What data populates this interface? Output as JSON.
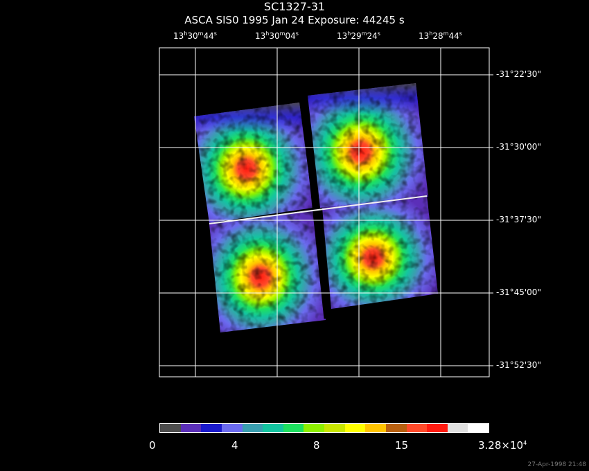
{
  "title": "SC1327-31",
  "subtitle": "ASCA SIS0   1995 Jan 24    Exposure: 44245 s",
  "ra_labels": [
    {
      "h": "13",
      "hm": "h",
      "m": "30",
      "ms": "m",
      "s": "44",
      "ss": "s"
    },
    {
      "h": "13",
      "hm": "h",
      "m": "30",
      "ms": "m",
      "s": "04",
      "ss": "s"
    },
    {
      "h": "13",
      "hm": "h",
      "m": "29",
      "ms": "m",
      "s": "24",
      "ss": "s"
    },
    {
      "h": "13",
      "hm": "h",
      "m": "28",
      "ms": "m",
      "s": "44",
      "ss": "s"
    }
  ],
  "dec_labels": [
    "-31°22'30\"",
    "-31°30'00\"",
    "-31°37'30\"",
    "-31°45'00\"",
    "-31°52'30\""
  ],
  "colorbar": {
    "colors": [
      "#4d4d4d",
      "#5b2fb8",
      "#1a1acc",
      "#6b6bef",
      "#3a9fb0",
      "#14c4a0",
      "#1ee060",
      "#8ef000",
      "#c8e600",
      "#ffff00",
      "#ffc400",
      "#b86010",
      "#ff4a2a",
      "#ff1a10",
      "#e0e0e0",
      "#ffffff"
    ],
    "labels": [
      "0",
      "4",
      "8",
      "15",
      "3.28×10"
    ],
    "last_label_exp": "4"
  },
  "timestamp": "27-Apr-1998 21:48"
}
